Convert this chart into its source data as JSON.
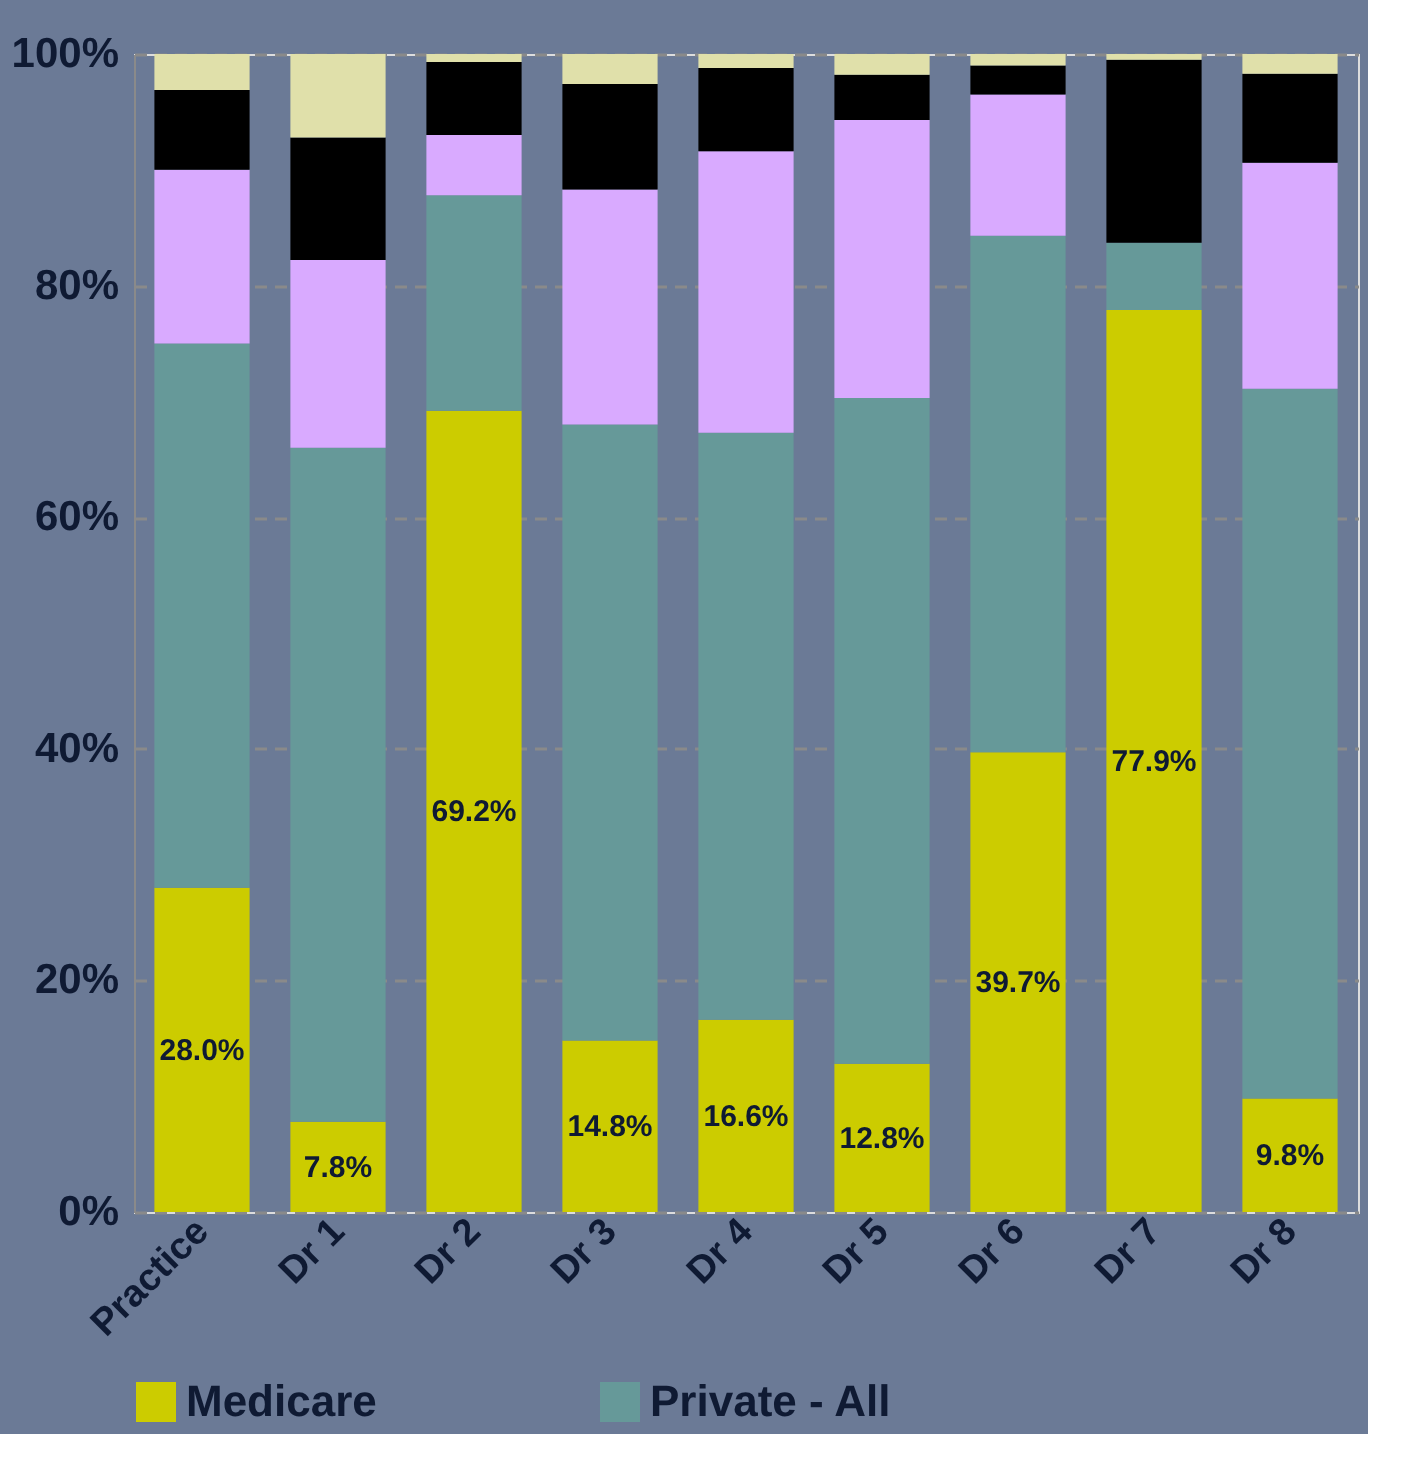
{
  "chart_data": {
    "type": "bar",
    "stacked": true,
    "categories": [
      "Practice",
      "Dr 1",
      "Dr 2",
      "Dr 3",
      "Dr 4",
      "Dr 5",
      "Dr 6",
      "Dr 7",
      "Dr 8"
    ],
    "series": [
      {
        "name": "Medicare",
        "color": "#cccc00",
        "values": [
          28.0,
          7.8,
          69.2,
          14.8,
          16.6,
          12.8,
          39.7,
          77.9,
          9.8
        ],
        "value_labels": [
          "28.0%",
          "7.8%",
          "69.2%",
          "14.8%",
          "16.6%",
          "12.8%",
          "39.7%",
          "77.9%",
          "9.8%"
        ]
      },
      {
        "name": "Private - All",
        "color": "#669999",
        "values": [
          47.0,
          58.2,
          18.6,
          53.2,
          50.7,
          57.5,
          44.6,
          5.8,
          61.3
        ]
      },
      {
        "color": "#d9aaff",
        "values": [
          15.0,
          16.2,
          5.2,
          20.3,
          24.3,
          24.0,
          12.2,
          0,
          19.5
        ]
      },
      {
        "color": "#000000",
        "values": [
          6.9,
          10.6,
          6.3,
          9.1,
          7.2,
          3.9,
          2.5,
          15.8,
          7.7
        ]
      },
      {
        "color": "#e0e0aa",
        "values": [
          3.1,
          7.2,
          0.7,
          2.6,
          1.2,
          1.8,
          1.0,
          0.5,
          1.7
        ]
      }
    ],
    "ylim": [
      0,
      100
    ],
    "yticks": [
      {
        "value": 0,
        "label": "0%"
      },
      {
        "value": 20,
        "label": "20%"
      },
      {
        "value": 40,
        "label": "40%"
      },
      {
        "value": 60,
        "label": "60%"
      },
      {
        "value": 80,
        "label": "80%"
      },
      {
        "value": 100,
        "label": "100%"
      }
    ],
    "grid": "y",
    "legend": "bottom"
  }
}
